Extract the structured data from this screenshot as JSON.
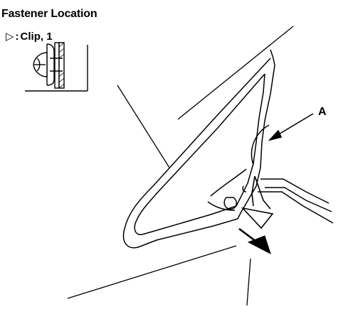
{
  "title": "Fastener Location",
  "legend": {
    "symbol": "▷",
    "separator": ":",
    "label": "Clip, 1"
  },
  "callout": "A"
}
